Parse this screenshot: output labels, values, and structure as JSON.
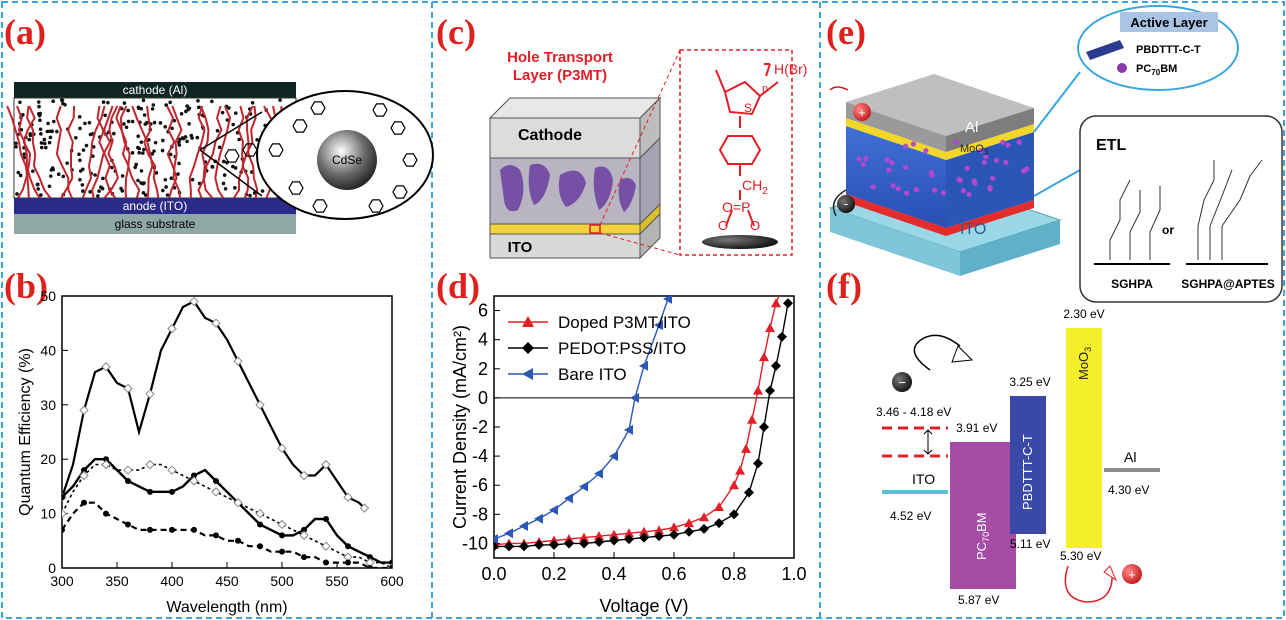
{
  "panel_labels": {
    "a": "(a)",
    "b": "(b)",
    "c": "(c)",
    "d": "(d)",
    "e": "(e)",
    "f": "(f)"
  },
  "colors": {
    "frame": "#3aa6dd",
    "label_red": "#e0201c",
    "polymer_red": "#c0262d",
    "doped": "#e41e26",
    "pedot": "#000000",
    "bare": "#2b57b7",
    "pcbm": "#a64ca6",
    "pbdttt": "#3a48a8",
    "moo3": "#f4ef2a",
    "ito_line": "#5bc0d8",
    "al_line": "#8c8c8c"
  },
  "panel_a": {
    "cathode": "cathode (Al)",
    "anode": "anode (ITO)",
    "substrate": "glass substrate",
    "nanocrystal": "CdSe"
  },
  "panel_b": {
    "xlabel": "Wavelength (nm)",
    "ylabel": "Quantum Efficiency (%)",
    "xticks": [
      "300",
      "350",
      "400",
      "450",
      "500",
      "550",
      "600"
    ],
    "yticks": [
      "0",
      "10",
      "20",
      "30",
      "40",
      "50"
    ]
  },
  "panel_c": {
    "title_line1": "Hole Transport",
    "title_line2": "Layer (P3MT)",
    "cathode": "Cathode",
    "ito": "ITO",
    "end_group": "H(Br)",
    "n": "n",
    "sulfur": "S",
    "ch2": "CH",
    "ch2_sub": "2",
    "phosphonate": "O=P",
    "o_left": "O",
    "o_right": "O"
  },
  "panel_e": {
    "active_layer": "Active Layer",
    "donor": "PBDTTT-C-T",
    "acceptor_pre": "PC",
    "acceptor_sub": "70",
    "acceptor_post": "BM",
    "al": "Al",
    "moo3_pre": "MoO",
    "moo3_sub": "3",
    "ito": "ITO",
    "etl": "ETL",
    "or": "or",
    "sghpa": "SGHPA",
    "sghpa_aptes": "SGHPA@APTES",
    "minus": "-",
    "plus": "+"
  },
  "panel_f": {
    "e_230": "2.30 eV",
    "e_325": "3.25 eV",
    "e_range": "3.46 - 4.18 eV",
    "e_391": "3.91 eV",
    "e_430": "4.30 eV",
    "e_452": "4.52 eV",
    "e_511": "5.11 eV",
    "e_530": "5.30 eV",
    "e_587": "5.87 eV",
    "ito": "ITO",
    "al": "Al",
    "pcbm_pre": "PC",
    "pcbm_sub": "70",
    "pcbm_post": "BM",
    "pbdttt": "PBDTTT-C-T",
    "moo3_pre": "MoO",
    "moo3_sub": "3",
    "minus": "−",
    "plus": "+"
  },
  "chart_data": [
    {
      "type": "line",
      "panel": "b",
      "xlabel": "Wavelength (nm)",
      "ylabel": "Quantum Efficiency (%)",
      "xlim": [
        300,
        600
      ],
      "ylim": [
        0,
        50
      ],
      "series": [
        {
          "x": [
            300,
            310,
            320,
            330,
            340,
            350,
            360,
            370,
            380,
            390,
            400,
            410,
            420,
            430,
            440,
            450,
            460,
            470,
            480,
            490,
            500,
            510,
            520,
            530,
            540,
            550,
            560,
            570,
            575
          ],
          "values": [
            13,
            19,
            29,
            36,
            37,
            34,
            33,
            25,
            32,
            40,
            44,
            48,
            49,
            46,
            45,
            42,
            38,
            34,
            30,
            26,
            22,
            19,
            17,
            17,
            19,
            16,
            13,
            12,
            11
          ]
        },
        {
          "x": [
            300,
            310,
            320,
            330,
            340,
            350,
            360,
            370,
            380,
            390,
            400,
            410,
            420,
            430,
            440,
            450,
            460,
            470,
            480,
            490,
            500,
            510,
            520,
            530,
            540,
            550,
            560,
            570,
            580,
            590,
            600
          ],
          "values": [
            13,
            15,
            18,
            20,
            20,
            18,
            16,
            15,
            14,
            14,
            14,
            15,
            17,
            18,
            16,
            14,
            12,
            10,
            8,
            7,
            6,
            6,
            7,
            9,
            9,
            6,
            4,
            3,
            2,
            1,
            1
          ]
        },
        {
          "x": [
            300,
            310,
            320,
            330,
            340,
            350,
            360,
            370,
            380,
            390,
            400,
            410,
            420,
            430,
            440,
            450,
            460,
            470,
            480,
            490,
            500,
            510,
            520,
            530,
            540,
            550,
            560,
            570,
            580,
            590,
            600
          ],
          "values": [
            10,
            14,
            17,
            19,
            19,
            18,
            18,
            18,
            19,
            19,
            18,
            17,
            16,
            15,
            14,
            13,
            12,
            11,
            10,
            9,
            8,
            7,
            6,
            5,
            4,
            3,
            2,
            2,
            1,
            1,
            0
          ]
        },
        {
          "x": [
            300,
            310,
            320,
            330,
            340,
            350,
            360,
            370,
            380,
            390,
            400,
            410,
            420,
            430,
            440,
            450,
            460,
            470,
            480,
            490,
            500,
            510,
            520,
            530,
            540,
            550,
            560,
            570,
            580,
            590,
            600
          ],
          "values": [
            7,
            10,
            12,
            12,
            10,
            9,
            8,
            7,
            7,
            7,
            7,
            7,
            7,
            6,
            6,
            5,
            5,
            4,
            4,
            3,
            3,
            3,
            2,
            2,
            1,
            1,
            1,
            1,
            0,
            0,
            0
          ]
        }
      ]
    },
    {
      "type": "line",
      "panel": "d",
      "xlabel": "Voltage (V)",
      "ylabel": "Current Density (mA/cm²)",
      "xlim": [
        0.0,
        1.0
      ],
      "ylim": [
        -11,
        7
      ],
      "xticks": [
        "0.0",
        "0.2",
        "0.4",
        "0.6",
        "0.8",
        "1.0"
      ],
      "yticks": [
        "-10",
        "-8",
        "-6",
        "-4",
        "-2",
        "0",
        "2",
        "4",
        "6"
      ],
      "series": [
        {
          "name": "Doped P3MT/ITO",
          "marker": "triangle-up",
          "x": [
            0.0,
            0.05,
            0.1,
            0.15,
            0.2,
            0.25,
            0.3,
            0.35,
            0.4,
            0.45,
            0.5,
            0.55,
            0.6,
            0.65,
            0.7,
            0.75,
            0.8,
            0.82,
            0.84,
            0.86,
            0.88,
            0.9,
            0.92,
            0.94,
            0.96
          ],
          "values": [
            -10.1,
            -10.0,
            -10.0,
            -9.9,
            -9.8,
            -9.7,
            -9.6,
            -9.5,
            -9.4,
            -9.3,
            -9.2,
            -9.1,
            -8.9,
            -8.6,
            -8.2,
            -7.5,
            -6.0,
            -5.0,
            -3.5,
            -1.5,
            0.5,
            2.8,
            4.8,
            6.5,
            7.5
          ]
        },
        {
          "name": "PEDOT:PSS/ITO",
          "marker": "diamond",
          "x": [
            0.0,
            0.05,
            0.1,
            0.15,
            0.2,
            0.25,
            0.3,
            0.35,
            0.4,
            0.45,
            0.5,
            0.55,
            0.6,
            0.65,
            0.7,
            0.75,
            0.8,
            0.85,
            0.88,
            0.9,
            0.92,
            0.94,
            0.96,
            0.98
          ],
          "values": [
            -10.2,
            -10.2,
            -10.2,
            -10.1,
            -10.1,
            -10.0,
            -10.0,
            -9.9,
            -9.8,
            -9.7,
            -9.6,
            -9.5,
            -9.4,
            -9.2,
            -9.0,
            -8.6,
            -8.0,
            -6.5,
            -4.5,
            -2.0,
            0.5,
            2.2,
            4.2,
            6.5
          ]
        },
        {
          "name": "Bare ITO",
          "marker": "triangle-left",
          "x": [
            0.0,
            0.05,
            0.1,
            0.15,
            0.2,
            0.25,
            0.3,
            0.35,
            0.4,
            0.45,
            0.47,
            0.5,
            0.55,
            0.58
          ],
          "values": [
            -9.7,
            -9.3,
            -8.8,
            -8.3,
            -7.7,
            -6.9,
            -6.1,
            -5.2,
            -4.0,
            -2.2,
            0.0,
            2.2,
            5.0,
            6.8
          ]
        }
      ]
    }
  ]
}
